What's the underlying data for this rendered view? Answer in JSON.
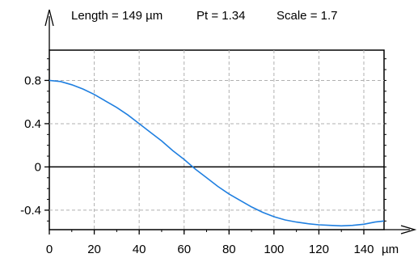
{
  "header": {
    "length": "Length = 149 µm",
    "pt": "Pt = 1.34",
    "scale": "Scale = 1.7"
  },
  "chart_data": {
    "type": "line",
    "title": "",
    "xlabel": "µm",
    "ylabel": "",
    "xlim": [
      0,
      149
    ],
    "ylim": [
      -0.58,
      1.08
    ],
    "x_ticks": [
      0,
      20,
      40,
      60,
      80,
      100,
      120,
      140
    ],
    "x_tick_labels": [
      "0",
      "20",
      "40",
      "60",
      "80",
      "100",
      "120",
      "140"
    ],
    "y_ticks": [
      0.8,
      0.4,
      0,
      -0.4
    ],
    "y_tick_labels": [
      "0.8",
      "0.4",
      "0",
      "-0.4"
    ],
    "grid": true,
    "line_color": "#1f7fe0",
    "series": [
      {
        "x": [
          0,
          5,
          10,
          15,
          20,
          25,
          30,
          35,
          40,
          45,
          50,
          55,
          60,
          65,
          70,
          75,
          80,
          85,
          90,
          95,
          100,
          105,
          110,
          115,
          120,
          125,
          130,
          135,
          140,
          145,
          149
        ],
        "y": [
          0.8,
          0.79,
          0.76,
          0.72,
          0.67,
          0.61,
          0.55,
          0.48,
          0.4,
          0.32,
          0.24,
          0.15,
          0.07,
          -0.02,
          -0.1,
          -0.18,
          -0.25,
          -0.31,
          -0.37,
          -0.42,
          -0.46,
          -0.49,
          -0.51,
          -0.525,
          -0.535,
          -0.54,
          -0.545,
          -0.54,
          -0.53,
          -0.51,
          -0.5
        ]
      }
    ]
  }
}
